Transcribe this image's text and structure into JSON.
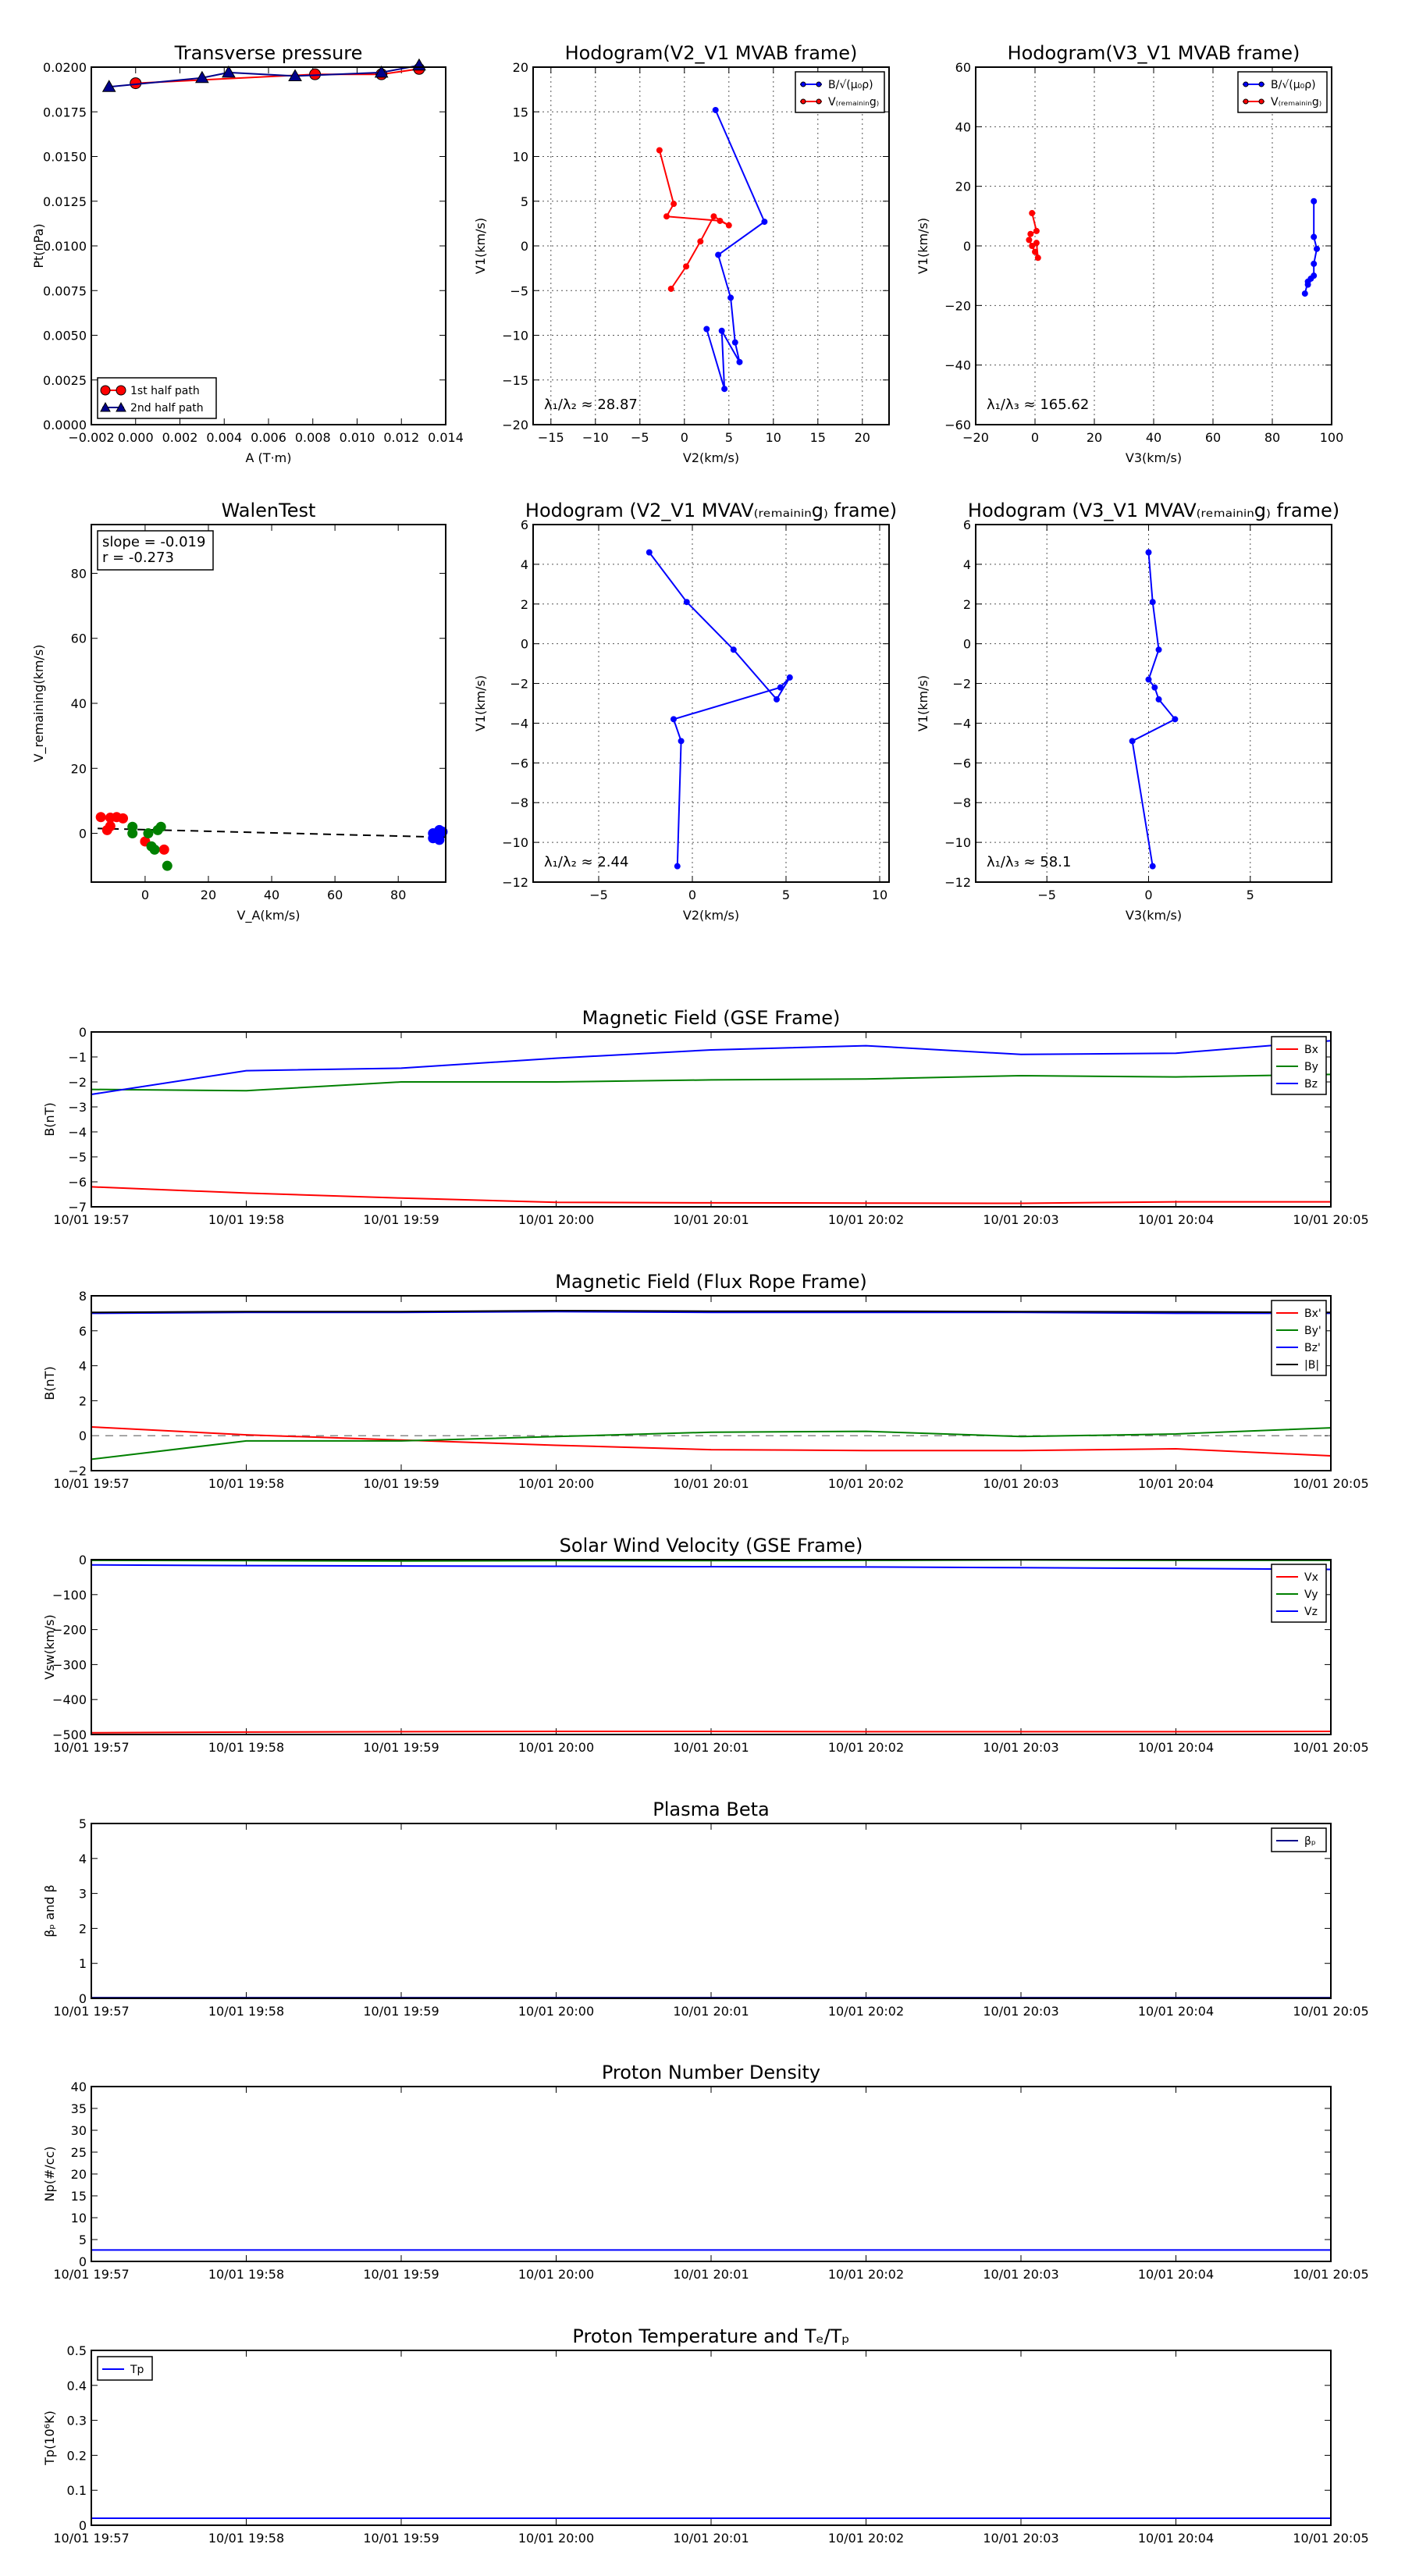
{
  "figure": {
    "background": "#ffffff"
  },
  "time_ticks": [
    "10/01 19:57",
    "10/01 19:58",
    "10/01 19:59",
    "10/01 20:00",
    "10/01 20:01",
    "10/01 20:02",
    "10/01 20:03",
    "10/01 20:04",
    "10/01 20:05"
  ],
  "chart_data": [
    {
      "id": "tp",
      "type": "line",
      "title": "Transverse pressure",
      "xlabel": "A (T·m)",
      "ylabel": "Pt(nPa)",
      "xlim": [
        -0.002,
        0.014
      ],
      "ylim": [
        0.0,
        0.02
      ],
      "xticks": [
        -0.002,
        0.0,
        0.002,
        0.004,
        0.006,
        0.008,
        0.01,
        0.012,
        0.014
      ],
      "xtick_labels": [
        "−0.002",
        "0.000",
        "0.002",
        "0.004",
        "0.006",
        "0.008",
        "0.010",
        "0.012",
        "0.014"
      ],
      "yticks": [
        0.0,
        0.0025,
        0.005,
        0.0075,
        0.01,
        0.0125,
        0.015,
        0.0175,
        0.02
      ],
      "ytick_labels": [
        "0.0000",
        "0.0025",
        "0.0050",
        "0.0075",
        "0.0100",
        "0.0125",
        "0.0150",
        "0.0175",
        "0.0200"
      ],
      "grid": false,
      "legend_position": "lower-left",
      "series": [
        {
          "name": "1st half path",
          "color": "#ff0000",
          "marker": "circle",
          "x": [
            0.0,
            0.0081,
            0.0111,
            0.0128
          ],
          "y": [
            0.0191,
            0.0196,
            0.0196,
            0.0199
          ]
        },
        {
          "name": "2nd half path",
          "color": "#00008b",
          "marker": "triangle",
          "x": [
            -0.0012,
            0.003,
            0.0042,
            0.0072,
            0.0111,
            0.0128
          ],
          "y": [
            0.0189,
            0.0194,
            0.0197,
            0.0195,
            0.0197,
            0.0201
          ]
        }
      ]
    },
    {
      "id": "h1",
      "type": "line",
      "title": "Hodogram(V2_V1 MVAB frame)",
      "xlabel": "V2(km/s)",
      "ylabel": "V1(km/s)",
      "xlim": [
        -17,
        23
      ],
      "ylim": [
        -20,
        20
      ],
      "xticks": [
        -15,
        -10,
        -5,
        0,
        5,
        10,
        15,
        20
      ],
      "yticks": [
        -20,
        -15,
        -10,
        -5,
        0,
        5,
        10,
        15,
        20
      ],
      "grid": true,
      "annotation": "λ₁/λ₂ ≈ 28.87",
      "legend_position": "upper-right",
      "series": [
        {
          "name": "B/√(μ₀ρ)",
          "color": "#0000ff",
          "x": [
            3.5,
            9,
            3.8,
            5.2,
            5.7,
            6.2,
            4.2,
            4.5,
            2.5
          ],
          "y": [
            15.2,
            2.7,
            -1,
            -5.8,
            -10.8,
            -13,
            -9.5,
            -16,
            -9.3
          ]
        },
        {
          "name": "V₍ᵣₑₘₐᵢₙᵢₙg₎",
          "color": "#ff0000",
          "x": [
            -2.8,
            -1.2,
            -2,
            4,
            5,
            3.3,
            1.8,
            0.2,
            -1.5
          ],
          "y": [
            10.7,
            4.7,
            3.3,
            2.8,
            2.3,
            3.3,
            0.5,
            -2.3,
            -4.8
          ]
        }
      ]
    },
    {
      "id": "h2",
      "type": "line",
      "title": "Hodogram(V3_V1 MVAB frame)",
      "xlabel": "V3(km/s)",
      "ylabel": "V1(km/s)",
      "xlim": [
        -20,
        100
      ],
      "ylim": [
        -60,
        60
      ],
      "xticks": [
        -20,
        0,
        20,
        40,
        60,
        80,
        100
      ],
      "yticks": [
        -60,
        -40,
        -20,
        0,
        20,
        40,
        60
      ],
      "grid": true,
      "annotation": "λ₁/λ₃ ≈ 165.62",
      "legend_position": "upper-right",
      "series": [
        {
          "name": "B/√(μ₀ρ)",
          "color": "#0000ff",
          "x": [
            94,
            94,
            95,
            94,
            94,
            92,
            93,
            92,
            91
          ],
          "y": [
            15,
            3,
            -1,
            -6,
            -10,
            -13,
            -11,
            -12,
            -16
          ]
        },
        {
          "name": "V₍ᵣₑₘₐᵢₙᵢₙg₎",
          "color": "#ff0000",
          "x": [
            -1,
            0.5,
            -1.5,
            -2,
            -1,
            0,
            1,
            0.5
          ],
          "y": [
            11,
            5,
            4,
            2,
            0,
            -2,
            -4,
            1
          ]
        }
      ]
    },
    {
      "id": "walen",
      "type": "scatter",
      "title": "WalenTest",
      "xlabel": "V_A(km/s)",
      "ylabel": "V_remaining(km/s)",
      "xlim": [
        -17,
        95
      ],
      "ylim": [
        -15,
        95
      ],
      "xticks": [
        0,
        20,
        40,
        60,
        80
      ],
      "yticks": [
        0,
        20,
        40,
        60,
        80
      ],
      "grid": false,
      "stats": [
        "slope = -0.019",
        "r = -0.273"
      ],
      "fit_line": {
        "x": [
          -15,
          95
        ],
        "y": [
          1.5,
          -1.2
        ]
      },
      "series": [
        {
          "name": "",
          "color": "#ff0000",
          "x": [
            -14,
            -11,
            -9,
            -7,
            -11,
            -12,
            0,
            6
          ],
          "y": [
            5,
            4.8,
            5,
            4.6,
            2.2,
            1,
            -2.5,
            -5
          ]
        },
        {
          "name": "",
          "color": "#008000",
          "x": [
            -4,
            -4,
            1,
            2,
            3,
            4,
            5,
            7
          ],
          "y": [
            2,
            0,
            0,
            -4,
            -5,
            1,
            2,
            -10
          ]
        },
        {
          "name": "",
          "color": "#0000ff",
          "x": [
            91,
            92,
            93,
            93,
            92,
            94,
            91
          ],
          "y": [
            0,
            -1,
            1,
            -2,
            -0.5,
            0.5,
            -1.5
          ]
        }
      ]
    },
    {
      "id": "h3",
      "type": "line",
      "title": "Hodogram (V2_V1 MVAV₍ᵣₑₘₐᵢₙᵢₙg₎ frame)",
      "xlabel": "V2(km/s)",
      "ylabel": "V1(km/s)",
      "xlim": [
        -8.5,
        10.5
      ],
      "ylim": [
        -12,
        6
      ],
      "xticks": [
        -5,
        0,
        5,
        10
      ],
      "yticks": [
        -12,
        -10,
        -8,
        -6,
        -4,
        -2,
        0,
        2,
        4,
        6
      ],
      "grid": true,
      "annotation": "λ₁/λ₂ ≈ 2.44",
      "series": [
        {
          "name": "",
          "color": "#0000ff",
          "x": [
            -2.3,
            -0.3,
            2.2,
            4.5,
            5.2,
            4.7,
            -1,
            -0.6,
            -0.8
          ],
          "y": [
            4.6,
            2.1,
            -0.3,
            -2.8,
            -1.7,
            -2.2,
            -3.8,
            -4.9,
            -11.2
          ]
        }
      ]
    },
    {
      "id": "h4",
      "type": "line",
      "title": "Hodogram (V3_V1 MVAV₍ᵣₑₘₐᵢₙᵢₙg₎ frame)",
      "xlabel": "V3(km/s)",
      "ylabel": "V1(km/s)",
      "xlim": [
        -8.5,
        9
      ],
      "ylim": [
        -12,
        6
      ],
      "xticks": [
        -5,
        0,
        5
      ],
      "yticks": [
        -12,
        -10,
        -8,
        -6,
        -4,
        -2,
        0,
        2,
        4,
        6
      ],
      "grid": true,
      "annotation": "λ₁/λ₃ ≈ 58.1",
      "series": [
        {
          "name": "",
          "color": "#0000ff",
          "x": [
            0,
            0.2,
            0.5,
            0,
            0.3,
            0.5,
            1.3,
            -0.8,
            0.2
          ],
          "y": [
            4.6,
            2.1,
            -0.3,
            -1.8,
            -2.2,
            -2.8,
            -3.8,
            -4.9,
            -11.2
          ]
        }
      ]
    },
    {
      "id": "ts1",
      "type": "line",
      "title": "Magnetic Field (GSE Frame)",
      "xlabel": "",
      "ylabel": "B(nT)",
      "x": [
        0,
        1,
        2,
        3,
        4,
        5,
        6,
        7,
        8
      ],
      "xlim": [
        0,
        8
      ],
      "ylim": [
        -7,
        0
      ],
      "yticks": [
        -7,
        -6,
        -5,
        -4,
        -3,
        -2,
        -1,
        0
      ],
      "legend_position": "upper-right",
      "series": [
        {
          "name": "Bx",
          "color": "#ff0000",
          "values": [
            -6.2,
            -6.45,
            -6.65,
            -6.82,
            -6.84,
            -6.85,
            -6.86,
            -6.8,
            -6.8
          ]
        },
        {
          "name": "By",
          "color": "#008000",
          "values": [
            -2.3,
            -2.35,
            -2.0,
            -2.0,
            -1.92,
            -1.88,
            -1.75,
            -1.8,
            -1.7
          ]
        },
        {
          "name": "Bz",
          "color": "#0000ff",
          "values": [
            -2.5,
            -1.55,
            -1.45,
            -1.05,
            -0.72,
            -0.55,
            -0.9,
            -0.85,
            -0.35
          ]
        }
      ]
    },
    {
      "id": "ts2",
      "type": "line",
      "title": "Magnetic Field (Flux Rope Frame)",
      "xlabel": "",
      "ylabel": "B(nT)",
      "x": [
        0,
        1,
        2,
        3,
        4,
        5,
        6,
        7,
        8
      ],
      "xlim": [
        0,
        8
      ],
      "ylim": [
        -2,
        8
      ],
      "yticks": [
        -2,
        0,
        2,
        4,
        6,
        8
      ],
      "zero_line": true,
      "legend_position": "upper-right",
      "series": [
        {
          "name": "Bx'",
          "color": "#ff0000",
          "values": [
            0.5,
            0.05,
            -0.25,
            -0.55,
            -0.8,
            -0.85,
            -0.85,
            -0.75,
            -1.15
          ]
        },
        {
          "name": "By'",
          "color": "#008000",
          "values": [
            -1.35,
            -0.3,
            -0.3,
            -0.05,
            0.2,
            0.25,
            -0.05,
            0.1,
            0.45
          ]
        },
        {
          "name": "Bz'",
          "color": "#0000ff",
          "values": [
            7.0,
            7.05,
            7.05,
            7.1,
            7.05,
            7.05,
            7.05,
            7.0,
            7.0
          ]
        },
        {
          "name": "|B|",
          "color": "#000000",
          "values": [
            7.05,
            7.1,
            7.1,
            7.15,
            7.12,
            7.12,
            7.1,
            7.08,
            7.05
          ]
        }
      ]
    },
    {
      "id": "ts3",
      "type": "line",
      "title": "Solar Wind Velocity (GSE Frame)",
      "xlabel": "",
      "ylabel": "Vsw(km/s)",
      "x": [
        0,
        1,
        2,
        3,
        4,
        5,
        6,
        7,
        8
      ],
      "xlim": [
        0,
        8
      ],
      "ylim": [
        -500,
        0
      ],
      "yticks": [
        -500,
        -400,
        -300,
        -200,
        -100,
        0
      ],
      "legend_position": "upper-right",
      "series": [
        {
          "name": "Vx",
          "color": "#ff0000",
          "values": [
            -495,
            -493,
            -492,
            -491,
            -491,
            -492,
            -492,
            -492,
            -491
          ]
        },
        {
          "name": "Vy",
          "color": "#008000",
          "values": [
            -2,
            -3,
            -4,
            -3,
            -3,
            -2,
            -1,
            -2,
            -2
          ]
        },
        {
          "name": "Vz",
          "color": "#0000ff",
          "values": [
            -15,
            -17,
            -18,
            -19,
            -20,
            -21,
            -23,
            -25,
            -28
          ]
        }
      ]
    },
    {
      "id": "ts4",
      "type": "line",
      "title": "Plasma Beta",
      "xlabel": "",
      "ylabel": "βₚ and β",
      "x": [
        0,
        1,
        2,
        3,
        4,
        5,
        6,
        7,
        8
      ],
      "xlim": [
        0,
        8
      ],
      "ylim": [
        0,
        5
      ],
      "yticks": [
        0,
        1,
        2,
        3,
        4,
        5
      ],
      "legend_position": "upper-right",
      "series": [
        {
          "name": "βₚ",
          "color": "#00008b",
          "values": [
            0.02,
            0.02,
            0.02,
            0.02,
            0.02,
            0.02,
            0.02,
            0.02,
            0.02
          ]
        }
      ]
    },
    {
      "id": "ts5",
      "type": "line",
      "title": "Proton Number Density",
      "xlabel": "",
      "ylabel": "Np(#/cc)",
      "x": [
        0,
        1,
        2,
        3,
        4,
        5,
        6,
        7,
        8
      ],
      "xlim": [
        0,
        8
      ],
      "ylim": [
        0,
        40
      ],
      "yticks": [
        0,
        5,
        10,
        15,
        20,
        25,
        30,
        35,
        40
      ],
      "series": [
        {
          "name": "",
          "color": "#0000ff",
          "values": [
            2.6,
            2.6,
            2.6,
            2.6,
            2.6,
            2.6,
            2.6,
            2.6,
            2.6
          ]
        }
      ]
    },
    {
      "id": "ts6",
      "type": "line",
      "title": "Proton Temperature and Tₑ/Tₚ",
      "xlabel": "",
      "ylabel": "Tp(10⁶K)",
      "x": [
        0,
        1,
        2,
        3,
        4,
        5,
        6,
        7,
        8
      ],
      "xlim": [
        0,
        8
      ],
      "ylim": [
        0,
        0.5
      ],
      "yticks": [
        0.0,
        0.1,
        0.2,
        0.3,
        0.4,
        0.5
      ],
      "legend_position": "upper-left",
      "series": [
        {
          "name": "Tp",
          "color": "#0000ff",
          "values": [
            0.02,
            0.02,
            0.02,
            0.02,
            0.02,
            0.02,
            0.02,
            0.02,
            0.02
          ]
        }
      ]
    }
  ]
}
